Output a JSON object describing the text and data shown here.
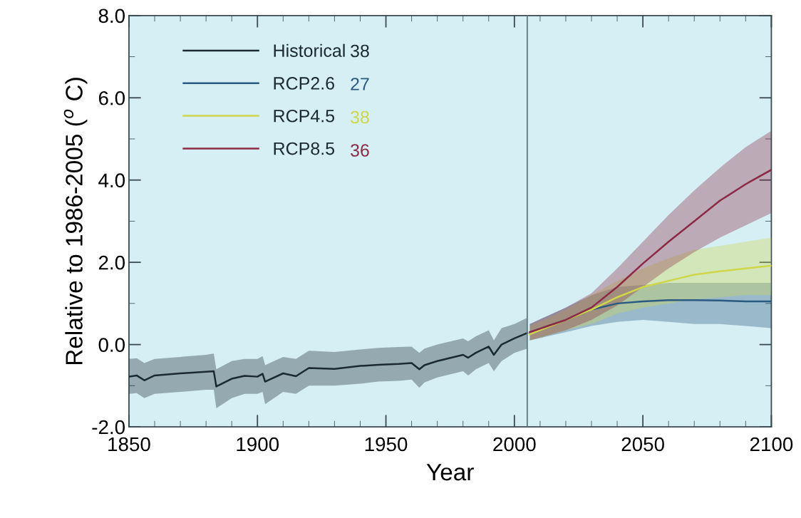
{
  "chart_data": {
    "type": "line",
    "xlabel": "Year",
    "ylabel": "Relative to 1986-2005 ($^{o}$ C)",
    "xlim": [
      1850,
      2100
    ],
    "xticks": [
      1850,
      1900,
      1950,
      2000,
      2050,
      2100
    ],
    "ylim": [
      -2.0,
      8.0
    ],
    "yticks": [
      {
        "value": -2,
        "label": "-2.0"
      },
      {
        "value": 0,
        "label": "0.0"
      },
      {
        "value": 2,
        "label": "2.0"
      },
      {
        "value": 4,
        "label": "4.0"
      },
      {
        "value": 6,
        "label": "6.0"
      },
      {
        "value": 8,
        "label": "8.0"
      }
    ],
    "grid": false,
    "legend": "top left",
    "line_style": "solid",
    "marker": "none",
    "ref_lines": [
      {
        "axis": "x",
        "value": 2005,
        "color": "#5e7a80",
        "line_style": "solid"
      }
    ],
    "annotations": [
      "38",
      "27",
      "38",
      "36"
    ],
    "series": [
      {
        "name": "Historical",
        "color": "#1a2a30",
        "x": [
          1850,
          1853,
          1856,
          1860,
          1870,
          1880,
          1883,
          1884,
          1890,
          1895,
          1900,
          1902,
          1903,
          1910,
          1915,
          1920,
          1930,
          1940,
          1947,
          1955,
          1960,
          1963,
          1965,
          1970,
          1980,
          1982,
          1985,
          1990,
          1992,
          1995,
          2000,
          2005
        ],
        "values": [
          -0.78,
          -0.75,
          -0.87,
          -0.75,
          -0.7,
          -0.66,
          -0.65,
          -1.02,
          -0.83,
          -0.76,
          -0.78,
          -0.71,
          -0.9,
          -0.7,
          -0.77,
          -0.57,
          -0.59,
          -0.52,
          -0.49,
          -0.47,
          -0.45,
          -0.6,
          -0.5,
          -0.4,
          -0.25,
          -0.32,
          -0.2,
          -0.05,
          -0.25,
          0.0,
          0.15,
          0.28
        ],
        "lower": [
          -1.2,
          -1.18,
          -1.3,
          -1.2,
          -1.15,
          -1.1,
          -1.1,
          -1.55,
          -1.3,
          -1.2,
          -1.2,
          -1.15,
          -1.45,
          -1.15,
          -1.2,
          -1.0,
          -1.0,
          -0.95,
          -0.9,
          -0.88,
          -0.85,
          -1.05,
          -0.92,
          -0.8,
          -0.65,
          -0.75,
          -0.6,
          -0.45,
          -0.65,
          -0.4,
          -0.2,
          -0.1
        ],
        "upper": [
          -0.35,
          -0.33,
          -0.45,
          -0.35,
          -0.3,
          -0.25,
          -0.22,
          -0.6,
          -0.4,
          -0.35,
          -0.35,
          -0.28,
          -0.5,
          -0.3,
          -0.35,
          -0.15,
          -0.18,
          -0.12,
          -0.08,
          -0.06,
          -0.05,
          -0.2,
          -0.1,
          0.0,
          0.15,
          0.08,
          0.2,
          0.35,
          0.1,
          0.4,
          0.5,
          0.65
        ]
      },
      {
        "name": "RCP2.6",
        "color": "#2a5a80",
        "x": [
          2006,
          2020,
          2030,
          2040,
          2050,
          2060,
          2070,
          2080,
          2090,
          2100
        ],
        "values": [
          0.3,
          0.6,
          0.85,
          1.0,
          1.05,
          1.08,
          1.08,
          1.07,
          1.05,
          1.05
        ],
        "lower": [
          0.1,
          0.3,
          0.45,
          0.55,
          0.6,
          0.55,
          0.5,
          0.5,
          0.45,
          0.4
        ],
        "upper": [
          0.5,
          0.9,
          1.2,
          1.4,
          1.45,
          1.5,
          1.5,
          1.5,
          1.5,
          1.5
        ]
      },
      {
        "name": "RCP4.5",
        "color": "#cfd64a",
        "x": [
          2006,
          2020,
          2030,
          2040,
          2050,
          2060,
          2070,
          2080,
          2090,
          2100
        ],
        "values": [
          0.25,
          0.6,
          0.85,
          1.15,
          1.4,
          1.55,
          1.7,
          1.78,
          1.85,
          1.92
        ],
        "lower": [
          0.1,
          0.35,
          0.5,
          0.75,
          0.9,
          1.0,
          1.1,
          1.15,
          1.2,
          1.2
        ],
        "upper": [
          0.45,
          0.85,
          1.2,
          1.55,
          1.85,
          2.1,
          2.3,
          2.4,
          2.5,
          2.6
        ]
      },
      {
        "name": "RCP8.5",
        "color": "#8c2a45",
        "x": [
          2006,
          2020,
          2030,
          2040,
          2050,
          2060,
          2070,
          2080,
          2090,
          2100
        ],
        "values": [
          0.3,
          0.6,
          0.9,
          1.4,
          1.97,
          2.5,
          3.0,
          3.5,
          3.9,
          4.25
        ],
        "lower": [
          0.1,
          0.35,
          0.6,
          0.95,
          1.4,
          1.85,
          2.25,
          2.6,
          2.9,
          3.2
        ],
        "upper": [
          0.5,
          0.9,
          1.25,
          1.85,
          2.5,
          3.15,
          3.75,
          4.3,
          4.8,
          5.2
        ]
      }
    ]
  }
}
